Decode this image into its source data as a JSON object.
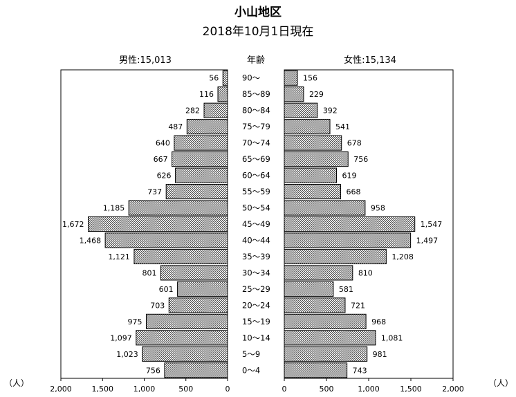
{
  "chart_data": {
    "type": "bar",
    "orientation": "horizontal-population-pyramid",
    "title": "小山地区",
    "subtitle": "2018年10月1日現在",
    "male_header": "男性:15,013",
    "female_header": "女性:15,134",
    "age_header": "年齢",
    "unit_left": "（人）",
    "unit_right": "（人）",
    "categories": [
      "90～",
      "85～89",
      "80～84",
      "75～79",
      "70～74",
      "65～69",
      "60～64",
      "55～59",
      "50～54",
      "45～49",
      "40～44",
      "35～39",
      "30～34",
      "25～29",
      "20～24",
      "15～19",
      "10～14",
      "5～9",
      "0～4"
    ],
    "series": [
      {
        "name": "男性",
        "values": [
          56,
          116,
          282,
          487,
          640,
          667,
          626,
          737,
          1185,
          1672,
          1468,
          1121,
          801,
          601,
          703,
          975,
          1097,
          1023,
          756
        ],
        "labels": [
          "56",
          "116",
          "282",
          "487",
          "640",
          "667",
          "626",
          "737",
          "1,185",
          "1,672",
          "1,468",
          "1,121",
          "801",
          "601",
          "703",
          "975",
          "1,097",
          "1,023",
          "756"
        ]
      },
      {
        "name": "女性",
        "values": [
          156,
          229,
          392,
          541,
          678,
          756,
          619,
          668,
          958,
          1547,
          1497,
          1208,
          810,
          581,
          721,
          968,
          1081,
          981,
          743
        ],
        "labels": [
          "156",
          "229",
          "392",
          "541",
          "678",
          "756",
          "619",
          "668",
          "958",
          "1,547",
          "1,497",
          "1,208",
          "810",
          "581",
          "721",
          "968",
          "1,081",
          "981",
          "743"
        ]
      }
    ],
    "xlim": [
      0,
      2000
    ],
    "ticks": [
      0,
      500,
      1000,
      1500,
      2000
    ],
    "tick_labels_left": [
      "0",
      "500",
      "1,000",
      "1,500",
      "2,000"
    ],
    "tick_labels_right": [
      "0",
      "500",
      "1,000",
      "1,500",
      "2,000"
    ],
    "grid": false
  }
}
